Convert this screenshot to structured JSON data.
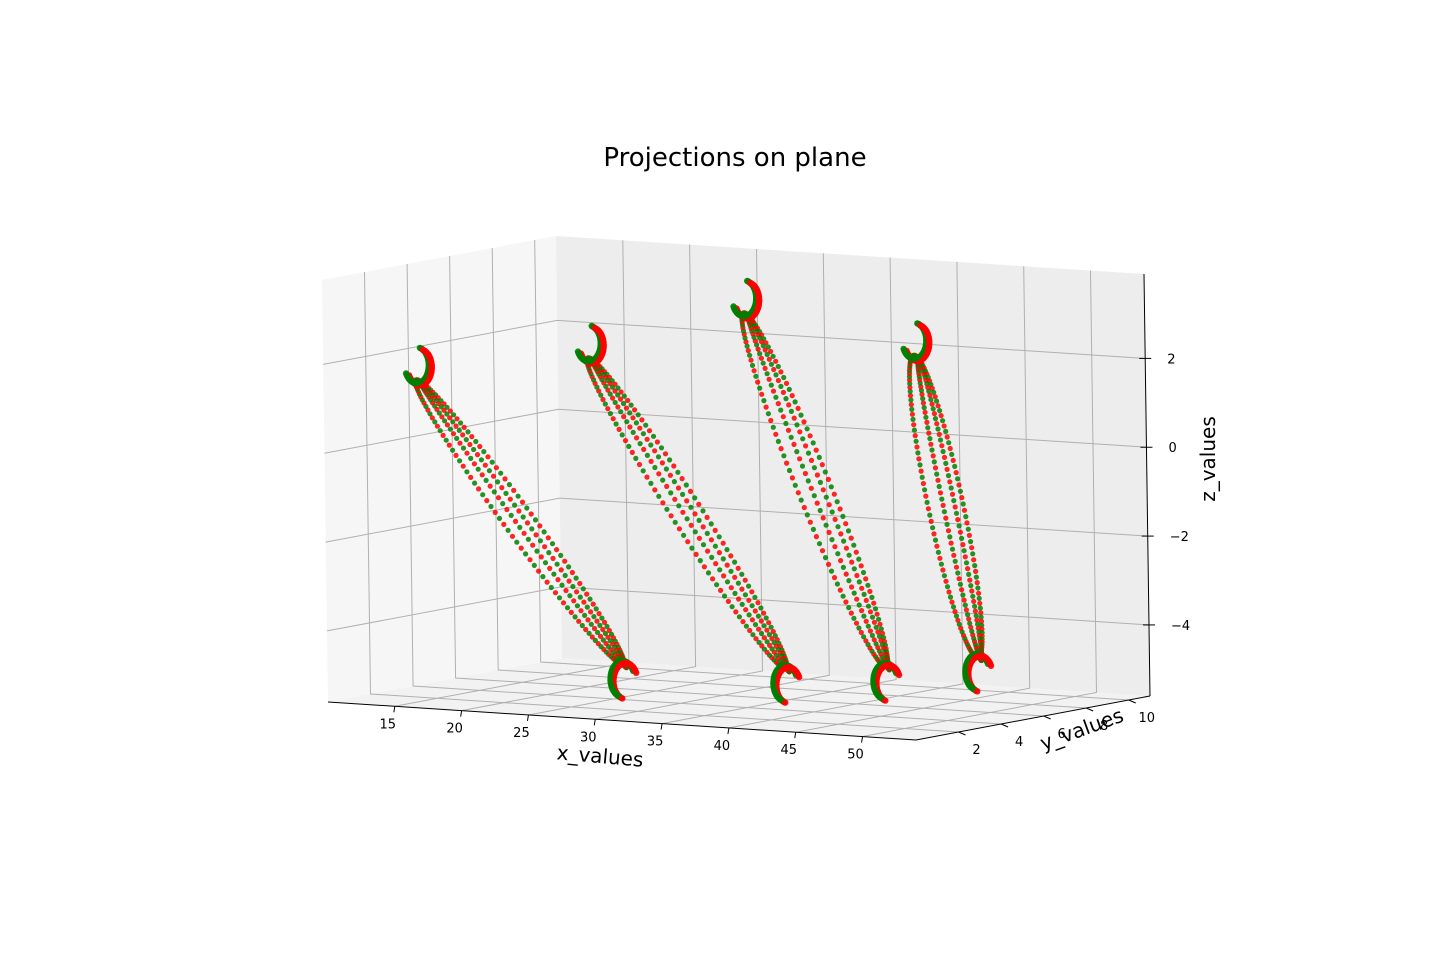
{
  "chart_data": {
    "type": "scatter",
    "title": "Projections on plane",
    "xlabel": "x_values",
    "ylabel": "y_values",
    "zlabel": "z_values",
    "x_ticks": [
      15,
      20,
      25,
      30,
      35,
      40,
      45,
      50
    ],
    "y_ticks": [
      2,
      4,
      6,
      8,
      10
    ],
    "z_ticks": [
      {
        "value": 2,
        "label": "2"
      },
      {
        "value": 0,
        "label": "0"
      },
      {
        "value": -2,
        "label": "−2"
      },
      {
        "value": -4,
        "label": "−4"
      }
    ],
    "xlim": [
      10,
      54
    ],
    "ylim": [
      0,
      11
    ],
    "zlim": [
      -5.6,
      3.9
    ],
    "grid": true,
    "series": [
      {
        "color": "#008000"
      },
      {
        "color": "#ff0000"
      }
    ],
    "loops": [
      {
        "x_start": 13.8,
        "x_end": 30.5,
        "y_start": 2.0,
        "y_end": 1.0,
        "z_top": 1.55,
        "z_bottom": -4.45
      },
      {
        "x_start": 23.5,
        "x_end": 39.5,
        "y_start": 4.0,
        "y_end": 3.0,
        "z_top": 2.05,
        "z_bottom": -4.55
      },
      {
        "x_start": 32.0,
        "x_end": 43.8,
        "y_start": 6.0,
        "y_end": 5.0,
        "z_top": 3.05,
        "z_bottom": -4.6
      },
      {
        "x_start": 41.5,
        "x_end": 47.5,
        "y_start": 8.0,
        "y_end": 7.0,
        "z_top": 2.1,
        "z_bottom": -4.5
      }
    ]
  }
}
